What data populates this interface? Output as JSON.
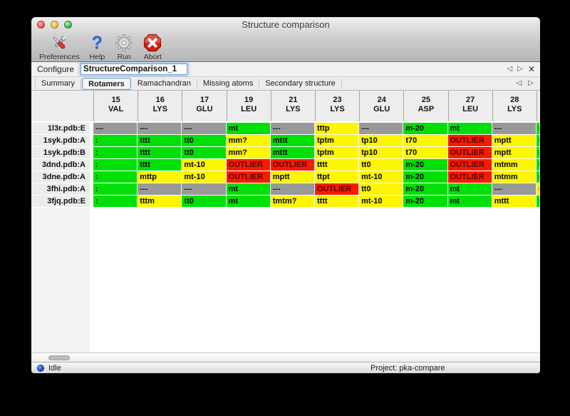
{
  "window": {
    "title": "Structure comparison"
  },
  "toolbar": {
    "buttons": [
      {
        "label": "Preferences",
        "icon": "tools-icon"
      },
      {
        "label": "Help",
        "icon": "help-icon"
      },
      {
        "label": "Run",
        "icon": "gear-icon"
      },
      {
        "label": "Abort",
        "icon": "abort-icon"
      }
    ]
  },
  "configure": {
    "label": "Configure",
    "value": "StructureComparison_1"
  },
  "icons": {
    "prev": "◁",
    "next": "▷",
    "close": "✕",
    "help_glyph": "?"
  },
  "tabs": {
    "items": [
      "Summary",
      "Rotamers",
      "Ramachandran",
      "Missing atoms",
      "Secondary structure"
    ],
    "selected": "Rotamers"
  },
  "colors": {
    "green": "#00e008",
    "yellow": "#fdf501",
    "red": "#f71b00",
    "gray": "#999999",
    "cell_text": "#000000",
    "red_text": "#5c0000",
    "gray_text": "#1c1c1c"
  },
  "table": {
    "columns": [
      {
        "num": "15",
        "res": "VAL"
      },
      {
        "num": "16",
        "res": "LYS"
      },
      {
        "num": "17",
        "res": "GLU"
      },
      {
        "num": "19",
        "res": "LEU"
      },
      {
        "num": "21",
        "res": "LYS"
      },
      {
        "num": "23",
        "res": "LYS"
      },
      {
        "num": "24",
        "res": "GLU"
      },
      {
        "num": "25",
        "res": "ASP"
      },
      {
        "num": "27",
        "res": "LEU"
      },
      {
        "num": "28",
        "res": "LYS"
      }
    ],
    "rows": [
      {
        "label": "1l3r.pdb:E",
        "cells": [
          [
            "---",
            "gray"
          ],
          [
            "---",
            "gray"
          ],
          [
            "---",
            "gray"
          ],
          [
            "mt",
            "green"
          ],
          [
            "---",
            "gray"
          ],
          [
            "tttp",
            "yellow"
          ],
          [
            "---",
            "gray"
          ],
          [
            "m-20",
            "green"
          ],
          [
            "mt",
            "green"
          ],
          [
            "---",
            "gray"
          ]
        ],
        "overflow": [
          "m",
          "green"
        ]
      },
      {
        "label": "1syk.pdb:A",
        "cells": [
          [
            ":",
            "green"
          ],
          [
            "tttt",
            "green"
          ],
          [
            "tt0",
            "green"
          ],
          [
            "mm?",
            "yellow"
          ],
          [
            "mttt",
            "green"
          ],
          [
            "tptm",
            "yellow"
          ],
          [
            "tp10",
            "yellow"
          ],
          [
            "t70",
            "yellow"
          ],
          [
            "OUTLIER",
            "red"
          ],
          [
            "mptt",
            "yellow"
          ]
        ],
        "overflow": [
          "m",
          "green"
        ]
      },
      {
        "label": "1syk.pdb:B",
        "cells": [
          [
            ":",
            "green"
          ],
          [
            "tttt",
            "green"
          ],
          [
            "tt0",
            "green"
          ],
          [
            "mm?",
            "yellow"
          ],
          [
            "mttt",
            "green"
          ],
          [
            "tptm",
            "yellow"
          ],
          [
            "tp10",
            "yellow"
          ],
          [
            "t70",
            "yellow"
          ],
          [
            "OUTLIER",
            "red"
          ],
          [
            "mptt",
            "yellow"
          ]
        ],
        "overflow": [
          "m",
          "green"
        ]
      },
      {
        "label": "3dnd.pdb:A",
        "cells": [
          [
            ":",
            "green"
          ],
          [
            "tttt",
            "green"
          ],
          [
            "mt-10",
            "yellow"
          ],
          [
            "OUTLIER",
            "red"
          ],
          [
            "OUTLIER",
            "red"
          ],
          [
            "tttt",
            "yellow"
          ],
          [
            "tt0",
            "yellow"
          ],
          [
            "m-20",
            "green"
          ],
          [
            "OUTLIER",
            "red"
          ],
          [
            "mtmm",
            "yellow"
          ]
        ],
        "overflow": [
          "m",
          "green"
        ]
      },
      {
        "label": "3dne.pdb:A",
        "cells": [
          [
            ":",
            "green"
          ],
          [
            "mttp",
            "yellow"
          ],
          [
            "mt-10",
            "yellow"
          ],
          [
            "OUTLIER",
            "red"
          ],
          [
            "mptt",
            "yellow"
          ],
          [
            "ttpt",
            "yellow"
          ],
          [
            "mt-10",
            "yellow"
          ],
          [
            "m-20",
            "green"
          ],
          [
            "OUTLIER",
            "red"
          ],
          [
            "mtmm",
            "yellow"
          ]
        ],
        "overflow": [
          "m",
          "green"
        ]
      },
      {
        "label": "3fhi.pdb:A",
        "cells": [
          [
            ":",
            "green"
          ],
          [
            "---",
            "gray"
          ],
          [
            "---",
            "gray"
          ],
          [
            "mt",
            "green"
          ],
          [
            "---",
            "gray"
          ],
          [
            "OUTLIER",
            "red"
          ],
          [
            "tt0",
            "yellow"
          ],
          [
            "m-20",
            "green"
          ],
          [
            "mt",
            "green"
          ],
          [
            "---",
            "gray"
          ]
        ],
        "overflow": [
          "m",
          "yellow"
        ]
      },
      {
        "label": "3fjq.pdb:E",
        "cells": [
          [
            ":",
            "green"
          ],
          [
            "tttm",
            "yellow"
          ],
          [
            "tt0",
            "green"
          ],
          [
            "mt",
            "green"
          ],
          [
            "tmtm?",
            "yellow"
          ],
          [
            "tttt",
            "yellow"
          ],
          [
            "mt-10",
            "yellow"
          ],
          [
            "m-20",
            "green"
          ],
          [
            "mt",
            "green"
          ],
          [
            "mttt",
            "yellow"
          ]
        ],
        "overflow": [
          "m",
          "green"
        ]
      }
    ]
  },
  "status": {
    "label": "Idle",
    "project": "Project: pka-compare"
  }
}
